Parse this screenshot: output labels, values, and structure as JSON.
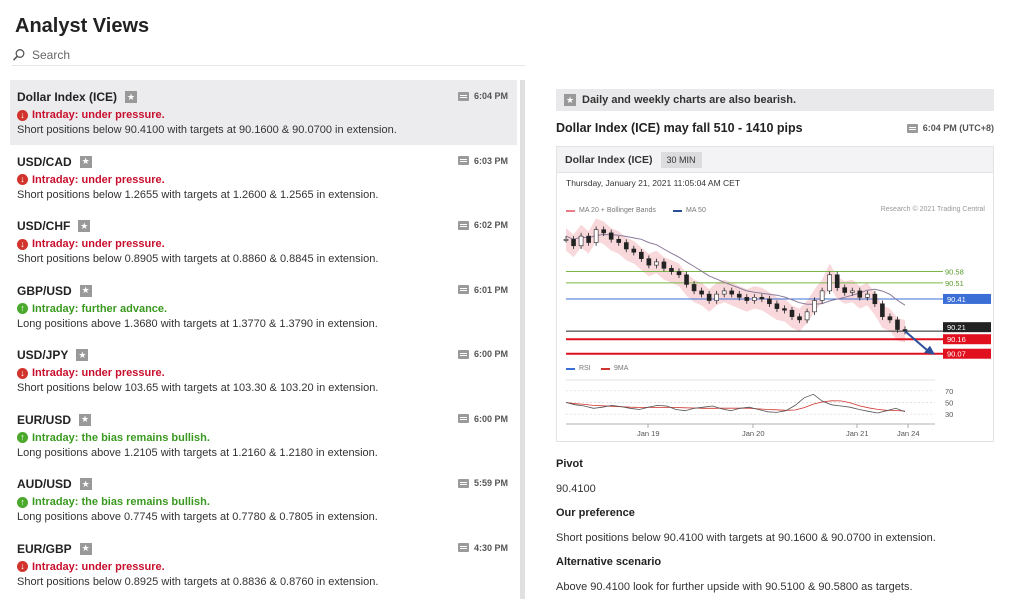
{
  "page_title": "Analyst Views",
  "search": {
    "placeholder": "Search"
  },
  "items": [
    {
      "name": "Dollar Index (ICE)",
      "time": "6:04 PM",
      "status": "Intraday: under pressure.",
      "dir": "down",
      "desc": "Short positions below 90.4100 with targets at 90.1600 & 90.0700 in extension."
    },
    {
      "name": "USD/CAD",
      "time": "6:03 PM",
      "status": "Intraday: under pressure.",
      "dir": "down",
      "desc": "Short positions below 1.2655 with targets at 1.2600 & 1.2565 in extension."
    },
    {
      "name": "USD/CHF",
      "time": "6:02 PM",
      "status": "Intraday: under pressure.",
      "dir": "down",
      "desc": "Short positions below 0.8905 with targets at 0.8860 & 0.8845 in extension."
    },
    {
      "name": "GBP/USD",
      "time": "6:01 PM",
      "status": "Intraday: further advance.",
      "dir": "up",
      "desc": "Long positions above 1.3680 with targets at 1.3770 & 1.3790 in extension."
    },
    {
      "name": "USD/JPY",
      "time": "6:00 PM",
      "status": "Intraday: under pressure.",
      "dir": "down",
      "desc": "Short positions below 103.65 with targets at 103.30 & 103.20 in extension."
    },
    {
      "name": "EUR/USD",
      "time": "6:00 PM",
      "status": "Intraday: the bias remains bullish.",
      "dir": "up",
      "desc": "Long positions above 1.2105 with targets at 1.2160 & 1.2180 in extension."
    },
    {
      "name": "AUD/USD",
      "time": "5:59 PM",
      "status": "Intraday: the bias remains bullish.",
      "dir": "up",
      "desc": "Long positions above 0.7745 with targets at 0.7780 & 0.7805 in extension."
    },
    {
      "name": "EUR/GBP",
      "time": "4:30 PM",
      "status": "Intraday: under pressure.",
      "dir": "down",
      "desc": "Short positions below 0.8925 with targets at 0.8836 & 0.8760 in extension."
    }
  ],
  "detail": {
    "banner": "Daily and weekly charts are also bearish.",
    "title": "Dollar Index (ICE) may fall 510 - 1410 pips",
    "time": "6:04 PM (UTC+8)",
    "chart_symbol": "Dollar Index (ICE)",
    "timeframe": "30 MIN",
    "chart_datetime": "Thursday, January 21, 2021 11:05:04 AM CET",
    "legend_ma20": "MA 20 + Bollinger Bands",
    "legend_ma50": "MA 50",
    "credit": "Research © 2021 Trading Central",
    "legend_rsi": "RSI",
    "legend_9ma": "9MA",
    "pivot_label": "Pivot",
    "pivot_value": "90.4100",
    "pref_label": "Our preference",
    "pref_text": "Short positions below 90.4100 with targets at 90.1600 & 90.0700 in extension.",
    "alt_label": "Alternative scenario",
    "alt_text": "Above 90.4100 look for further upside with 90.5100 & 90.5800 as targets."
  },
  "chart_data": {
    "type": "line",
    "x_ticks": [
      "Jan 19",
      "Jan 20",
      "Jan 21",
      "Jan 24"
    ],
    "price_levels": [
      {
        "label": "90.58",
        "value": 90.58,
        "color": "#7ab648",
        "kind": "resistance"
      },
      {
        "label": "90.51",
        "value": 90.51,
        "color": "#7ab648",
        "kind": "resistance"
      },
      {
        "label": "90.41",
        "value": 90.41,
        "color": "#3b6fd6",
        "kind": "pivot"
      },
      {
        "label": "90.21",
        "value": 90.21,
        "color": "#222222",
        "kind": "last"
      },
      {
        "label": "90.16",
        "value": 90.16,
        "color": "#e0101e",
        "kind": "target"
      },
      {
        "label": "90.07",
        "value": 90.07,
        "color": "#e0101e",
        "kind": "target"
      }
    ],
    "price_series": [
      90.78,
      90.74,
      90.8,
      90.76,
      90.84,
      90.82,
      90.78,
      90.76,
      90.72,
      90.7,
      90.66,
      90.62,
      90.64,
      90.6,
      90.58,
      90.56,
      90.5,
      90.46,
      90.44,
      90.4,
      90.44,
      90.46,
      90.44,
      90.42,
      90.4,
      90.42,
      90.41,
      90.38,
      90.35,
      90.34,
      90.3,
      90.28,
      90.33,
      90.4,
      90.46,
      90.56,
      90.48,
      90.45,
      90.46,
      90.42,
      90.44,
      90.38,
      90.3,
      90.28,
      90.22,
      90.21
    ],
    "y_range": [
      90.0,
      90.9
    ],
    "rsi_ticks": [
      70,
      50,
      30
    ],
    "rsi_range": [
      20,
      80
    ],
    "rsi_series": [
      50,
      46,
      44,
      40,
      42,
      45,
      43,
      40,
      38,
      42,
      45,
      44,
      38,
      36,
      40,
      42,
      44,
      39,
      36,
      40,
      42,
      38,
      34,
      33,
      36,
      45,
      58,
      64,
      52,
      46,
      44,
      42,
      38,
      35,
      32,
      36,
      40,
      34
    ]
  }
}
